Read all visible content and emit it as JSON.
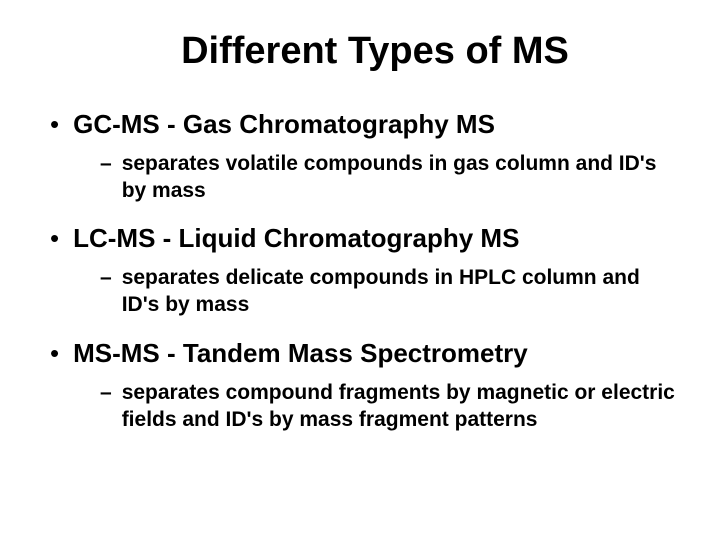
{
  "title": "Different Types of MS",
  "items": [
    {
      "main": "GC-MS - Gas Chromatography MS",
      "sub": "separates volatile compounds in gas column and ID's by mass"
    },
    {
      "main": "LC-MS - Liquid Chromatography MS",
      "sub": "separates delicate compounds in HPLC column and ID's by mass"
    },
    {
      "main": "MS-MS - Tandem Mass Spectrometry",
      "sub": "separates compound fragments by magnetic or electric fields and ID's by mass fragment patterns"
    }
  ],
  "styling": {
    "background_color": "#ffffff",
    "text_color": "#000000",
    "title_fontsize": 38,
    "main_fontsize": 26,
    "sub_fontsize": 21,
    "font_family": "Arial",
    "all_bold": true
  }
}
